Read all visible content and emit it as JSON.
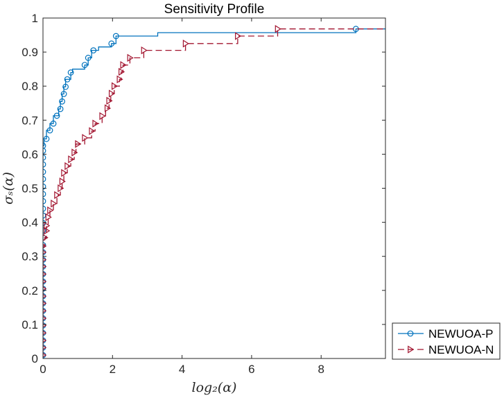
{
  "chart_data": {
    "type": "line",
    "title": "Sensitivity Profile",
    "xlabel": "log₂(α)",
    "ylabel": "σₛ(α)",
    "xlim": [
      0,
      9.85
    ],
    "ylim": [
      0,
      1
    ],
    "xticks": [
      0,
      2,
      4,
      6,
      8
    ],
    "xtick_labels": [
      "0",
      "2",
      "4",
      "6",
      "8"
    ],
    "yticks": [
      0,
      0.1,
      0.2,
      0.3,
      0.4,
      0.5,
      0.6,
      0.7,
      0.8,
      0.9,
      1
    ],
    "ytick_labels": [
      "0",
      "0.1",
      "0.2",
      "0.3",
      "0.4",
      "0.5",
      "0.6",
      "0.7",
      "0.8",
      "0.9",
      "1"
    ],
    "grid": false,
    "legend_position": "bottom-right-outside",
    "series": [
      {
        "name": "NEWUOA-P",
        "color": "#0072BD",
        "line_style": "solid",
        "marker": "circle",
        "step_points": [
          [
            0,
            0.01
          ],
          [
            0,
            0.625
          ],
          [
            0.03,
            0.625
          ],
          [
            0.03,
            0.645
          ],
          [
            0.1,
            0.645
          ],
          [
            0.1,
            0.67
          ],
          [
            0.2,
            0.67
          ],
          [
            0.2,
            0.69
          ],
          [
            0.3,
            0.69
          ],
          [
            0.3,
            0.713
          ],
          [
            0.45,
            0.713
          ],
          [
            0.45,
            0.733
          ],
          [
            0.5,
            0.733
          ],
          [
            0.5,
            0.755
          ],
          [
            0.55,
            0.755
          ],
          [
            0.55,
            0.777
          ],
          [
            0.6,
            0.777
          ],
          [
            0.6,
            0.798
          ],
          [
            0.65,
            0.798
          ],
          [
            0.65,
            0.82
          ],
          [
            0.8,
            0.82
          ],
          [
            0.8,
            0.84
          ],
          [
            0.85,
            0.84
          ],
          [
            0.85,
            0.85
          ],
          [
            1.2,
            0.85
          ],
          [
            1.2,
            0.862
          ],
          [
            1.3,
            0.862
          ],
          [
            1.3,
            0.883
          ],
          [
            1.4,
            0.883
          ],
          [
            1.4,
            0.905
          ],
          [
            1.6,
            0.905
          ],
          [
            1.6,
            0.915
          ],
          [
            1.97,
            0.915
          ],
          [
            1.97,
            0.925
          ],
          [
            2.1,
            0.925
          ],
          [
            2.1,
            0.947
          ],
          [
            3.3,
            0.947
          ],
          [
            3.3,
            0.957
          ],
          [
            9.0,
            0.957
          ],
          [
            9.0,
            0.968
          ],
          [
            9.85,
            0.968
          ]
        ],
        "markers": [
          [
            0,
            0.01
          ],
          [
            0,
            0.032
          ],
          [
            0,
            0.053
          ],
          [
            0,
            0.075
          ],
          [
            0,
            0.097
          ],
          [
            0,
            0.118
          ],
          [
            0,
            0.14
          ],
          [
            0,
            0.162
          ],
          [
            0,
            0.183
          ],
          [
            0,
            0.205
          ],
          [
            0,
            0.226
          ],
          [
            0,
            0.248
          ],
          [
            0,
            0.27
          ],
          [
            0,
            0.29
          ],
          [
            0,
            0.312
          ],
          [
            0,
            0.333
          ],
          [
            0,
            0.355
          ],
          [
            0,
            0.376
          ],
          [
            0,
            0.398
          ],
          [
            0,
            0.42
          ],
          [
            0,
            0.44
          ],
          [
            0,
            0.462
          ],
          [
            0,
            0.483
          ],
          [
            0,
            0.505
          ],
          [
            0,
            0.527
          ],
          [
            0,
            0.548
          ],
          [
            0,
            0.57
          ],
          [
            0,
            0.59
          ],
          [
            0,
            0.61
          ],
          [
            0,
            0.625
          ],
          [
            0.1,
            0.645
          ],
          [
            0.2,
            0.67
          ],
          [
            0.3,
            0.69
          ],
          [
            0.4,
            0.713
          ],
          [
            0.5,
            0.733
          ],
          [
            0.55,
            0.755
          ],
          [
            0.6,
            0.777
          ],
          [
            0.65,
            0.798
          ],
          [
            0.7,
            0.82
          ],
          [
            0.8,
            0.84
          ],
          [
            1.2,
            0.862
          ],
          [
            1.3,
            0.883
          ],
          [
            1.45,
            0.905
          ],
          [
            1.97,
            0.925
          ],
          [
            2.1,
            0.947
          ],
          [
            9.0,
            0.968
          ]
        ]
      },
      {
        "name": "NEWUOA-N",
        "color": "#A2142F",
        "line_style": "dashed",
        "marker": "triangle-right",
        "step_points": [
          [
            0,
            0.01
          ],
          [
            0,
            0.33
          ],
          [
            0.05,
            0.33
          ],
          [
            0.05,
            0.355
          ],
          [
            0.1,
            0.355
          ],
          [
            0.1,
            0.39
          ],
          [
            0.15,
            0.39
          ],
          [
            0.15,
            0.415
          ],
          [
            0.2,
            0.415
          ],
          [
            0.2,
            0.435
          ],
          [
            0.3,
            0.435
          ],
          [
            0.3,
            0.455
          ],
          [
            0.4,
            0.455
          ],
          [
            0.4,
            0.48
          ],
          [
            0.5,
            0.48
          ],
          [
            0.5,
            0.5
          ],
          [
            0.55,
            0.5
          ],
          [
            0.55,
            0.52
          ],
          [
            0.6,
            0.52
          ],
          [
            0.6,
            0.545
          ],
          [
            0.7,
            0.545
          ],
          [
            0.7,
            0.565
          ],
          [
            0.8,
            0.565
          ],
          [
            0.8,
            0.585
          ],
          [
            0.9,
            0.585
          ],
          [
            0.9,
            0.605
          ],
          [
            0.95,
            0.605
          ],
          [
            0.95,
            0.63
          ],
          [
            1.2,
            0.63
          ],
          [
            1.2,
            0.648
          ],
          [
            1.4,
            0.648
          ],
          [
            1.4,
            0.668
          ],
          [
            1.5,
            0.668
          ],
          [
            1.5,
            0.69
          ],
          [
            1.7,
            0.69
          ],
          [
            1.7,
            0.712
          ],
          [
            1.8,
            0.712
          ],
          [
            1.8,
            0.735
          ],
          [
            1.9,
            0.735
          ],
          [
            1.9,
            0.757
          ],
          [
            1.95,
            0.757
          ],
          [
            1.95,
            0.778
          ],
          [
            2.05,
            0.778
          ],
          [
            2.05,
            0.8
          ],
          [
            2.2,
            0.8
          ],
          [
            2.2,
            0.82
          ],
          [
            2.25,
            0.82
          ],
          [
            2.25,
            0.842
          ],
          [
            2.3,
            0.842
          ],
          [
            2.3,
            0.862
          ],
          [
            2.5,
            0.862
          ],
          [
            2.5,
            0.883
          ],
          [
            2.9,
            0.883
          ],
          [
            2.9,
            0.905
          ],
          [
            4.1,
            0.905
          ],
          [
            4.1,
            0.925
          ],
          [
            5.6,
            0.925
          ],
          [
            5.6,
            0.947
          ],
          [
            6.75,
            0.947
          ],
          [
            6.75,
            0.968
          ],
          [
            9.85,
            0.968
          ]
        ],
        "markers": [
          [
            0,
            0.01
          ],
          [
            0,
            0.032
          ],
          [
            0,
            0.053
          ],
          [
            0,
            0.075
          ],
          [
            0,
            0.097
          ],
          [
            0,
            0.118
          ],
          [
            0,
            0.14
          ],
          [
            0,
            0.162
          ],
          [
            0,
            0.183
          ],
          [
            0,
            0.205
          ],
          [
            0,
            0.226
          ],
          [
            0,
            0.248
          ],
          [
            0,
            0.27
          ],
          [
            0,
            0.29
          ],
          [
            0,
            0.312
          ],
          [
            0,
            0.33
          ],
          [
            0.05,
            0.355
          ],
          [
            0.1,
            0.375
          ],
          [
            0.1,
            0.39
          ],
          [
            0.15,
            0.415
          ],
          [
            0.2,
            0.435
          ],
          [
            0.3,
            0.455
          ],
          [
            0.4,
            0.48
          ],
          [
            0.5,
            0.5
          ],
          [
            0.55,
            0.52
          ],
          [
            0.6,
            0.545
          ],
          [
            0.7,
            0.565
          ],
          [
            0.8,
            0.585
          ],
          [
            0.9,
            0.605
          ],
          [
            1.0,
            0.63
          ],
          [
            1.2,
            0.648
          ],
          [
            1.4,
            0.668
          ],
          [
            1.5,
            0.69
          ],
          [
            1.7,
            0.712
          ],
          [
            1.85,
            0.735
          ],
          [
            1.9,
            0.757
          ],
          [
            1.97,
            0.778
          ],
          [
            2.05,
            0.8
          ],
          [
            2.2,
            0.82
          ],
          [
            2.25,
            0.842
          ],
          [
            2.3,
            0.862
          ],
          [
            2.5,
            0.883
          ],
          [
            2.9,
            0.905
          ],
          [
            4.1,
            0.925
          ],
          [
            5.6,
            0.947
          ],
          [
            6.75,
            0.968
          ]
        ]
      }
    ]
  }
}
